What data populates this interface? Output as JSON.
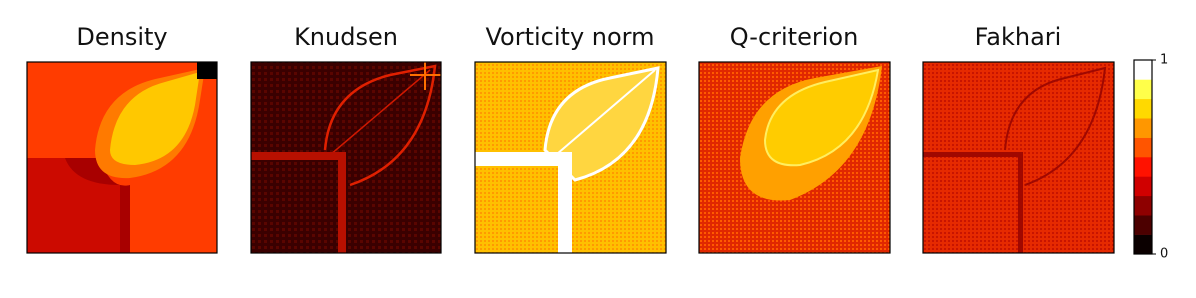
{
  "panels": [
    {
      "title": "Density"
    },
    {
      "title": "Knudsen"
    },
    {
      "title": "Vorticity norm"
    },
    {
      "title": "Q-criterion"
    },
    {
      "title": "Fakhari"
    }
  ],
  "colorbar": {
    "range": [
      0,
      1
    ],
    "ticks": [
      0,
      1
    ],
    "colors": [
      "#0b0000",
      "#4c0000",
      "#8e0000",
      "#d00000",
      "#ff1200",
      "#ff5500",
      "#ff9700",
      "#ffd900",
      "#ffff4a",
      "#ffffff"
    ]
  }
}
